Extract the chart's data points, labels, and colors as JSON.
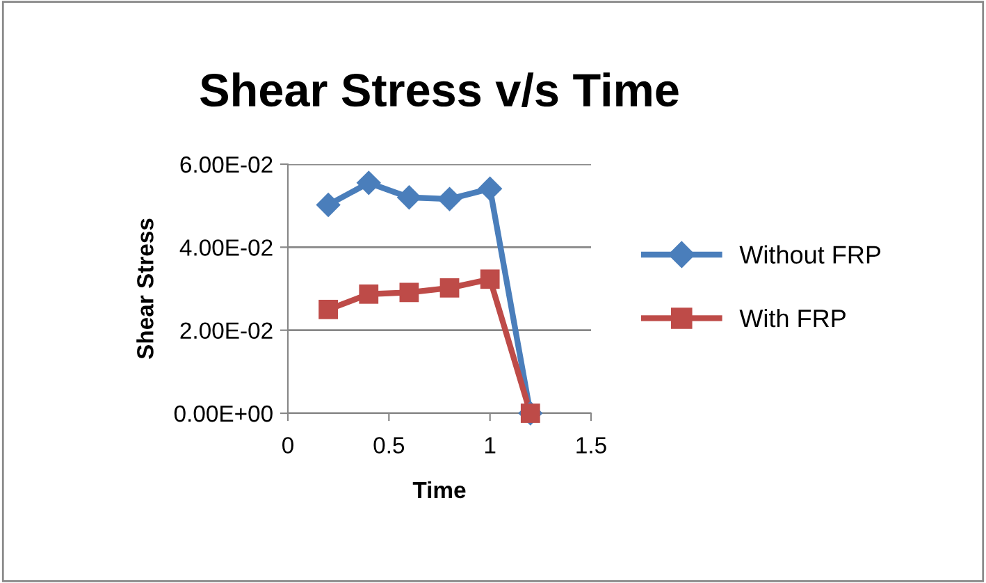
{
  "chart_data": {
    "type": "line",
    "title": "Shear Stress v/s Time",
    "xlabel": "Time",
    "ylabel": "Shear Stress",
    "x": [
      0.2,
      0.4,
      0.6,
      0.8,
      1.0,
      1.2
    ],
    "series": [
      {
        "name": "Without FRP",
        "color": "#4a7ebb",
        "marker": "diamond",
        "values": [
          0.0502,
          0.0555,
          0.052,
          0.0516,
          0.0541,
          0
        ]
      },
      {
        "name": "With FRP",
        "color": "#be4b48",
        "marker": "square",
        "values": [
          0.025,
          0.0287,
          0.0291,
          0.0302,
          0.0323,
          0
        ]
      }
    ],
    "xlim": [
      0,
      1.5
    ],
    "xticks": [
      0,
      0.5,
      1,
      1.5
    ],
    "ylim": [
      0,
      0.06
    ],
    "yticks": [
      {
        "value": 0,
        "label": "0.00E+00"
      },
      {
        "value": 0.02,
        "label": "2.00E-02"
      },
      {
        "value": 0.04,
        "label": "4.00E-02"
      },
      {
        "value": 0.06,
        "label": "6.00E-02"
      }
    ],
    "grid": "y",
    "legend": "right"
  }
}
